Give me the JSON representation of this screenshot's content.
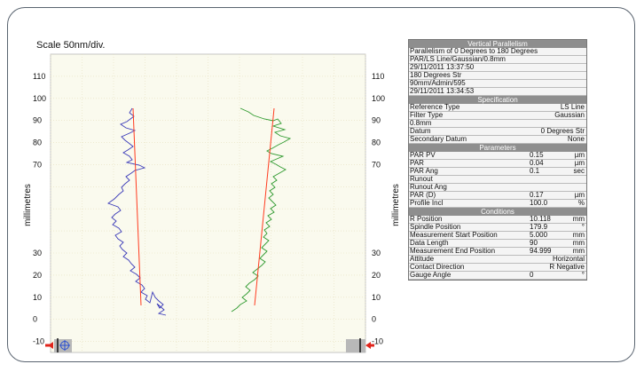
{
  "scale_label": "Scale 50nm/div.",
  "plot": {
    "y_axis_title": "millimetres",
    "y_ticks": [
      110,
      100,
      90,
      80,
      70,
      30,
      20,
      10,
      0,
      -10
    ],
    "y_range": [
      -15,
      120
    ],
    "colors": {
      "trace_left": "#3a3ab8",
      "trace_right": "#2f9a2f",
      "fit_line": "#ff3b1f",
      "plot_bg": "#fafaee",
      "grid": "#e6e0bf",
      "marker_red": "#e0251c"
    },
    "markers": {
      "left_icon": "crosshair-target-icon",
      "right_icon": "end-stop-marker-icon"
    }
  },
  "panel": {
    "vertical_parallelism": {
      "header": "Vertical Parallelism",
      "lines": [
        "Parallelism of 0 Degrees to 180 Degrees",
        "PAR/LS Line/Gaussian/0.8mm",
        "29/11/2011 13:37:50",
        "180 Degrees Str",
        "90mm/Admin/595",
        "29/11/2011 13:34:53"
      ]
    },
    "specification": {
      "header": "Specification",
      "rows": [
        {
          "label": "Reference Type",
          "value": "LS Line"
        },
        {
          "label": "Filter Type",
          "value": "Gaussian"
        },
        {
          "label": "0.8mm",
          "value": ""
        },
        {
          "label": "Datum",
          "value": "0 Degrees Str"
        },
        {
          "label": "Secondary Datum",
          "value": "None"
        }
      ]
    },
    "parameters": {
      "header": "Parameters",
      "rows": [
        {
          "label": "PAR PV",
          "value": "0.15",
          "unit": "µm"
        },
        {
          "label": "PAR",
          "value": "0.04",
          "unit": "µm"
        },
        {
          "label": "PAR Ang",
          "value": "0.1",
          "unit": "sec"
        },
        {
          "label": "Runout",
          "value": "",
          "unit": ""
        },
        {
          "label": "Runout Ang",
          "value": "",
          "unit": ""
        },
        {
          "label": "PAR (D)",
          "value": "0.17",
          "unit": "µm"
        },
        {
          "label": "Profile Incl",
          "value": "100.0",
          "unit": "%"
        }
      ]
    },
    "conditions": {
      "header": "Conditions",
      "rows": [
        {
          "label": "R Position",
          "value": "10.118",
          "unit": "mm"
        },
        {
          "label": "Spindle Position",
          "value": "179.9",
          "unit": "°"
        },
        {
          "label": "Measurement Start Position",
          "value": "5.000",
          "unit": "mm"
        },
        {
          "label": "Data Length",
          "value": "90",
          "unit": "mm"
        },
        {
          "label": "Measurement End Position",
          "value": "94.999",
          "unit": "mm"
        },
        {
          "label": "Attitude",
          "value": "",
          "unit": "Horizontal"
        },
        {
          "label": "Contact Direction",
          "value": "",
          "unit": "R Negative"
        },
        {
          "label": "Gauge Angle",
          "value": "0",
          "unit": "°"
        }
      ]
    }
  }
}
